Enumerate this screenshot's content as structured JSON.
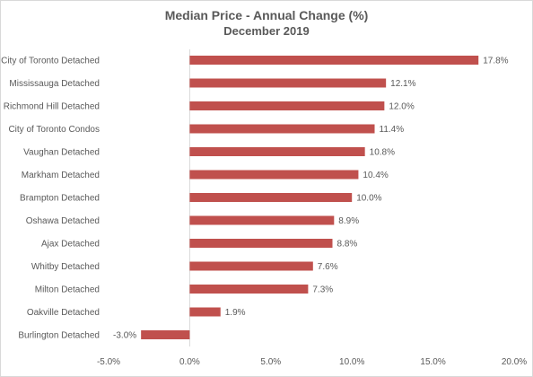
{
  "chart_data": {
    "type": "bar",
    "orientation": "horizontal",
    "title": "Median Price - Annual Change (%)",
    "subtitle": "December 2019",
    "categories": [
      "City of Toronto Detached",
      "Mississauga Detached",
      "Richmond Hill Detached",
      "City of Toronto Condos",
      "Vaughan Detached",
      "Markham Detached",
      "Brampton Detached",
      "Oshawa Detached",
      "Ajax Detached",
      "Whitby Detached",
      "Milton Detached",
      "Oakville Detached",
      "Burlington Detached"
    ],
    "values": [
      17.8,
      12.1,
      12.0,
      11.4,
      10.8,
      10.4,
      10.0,
      8.9,
      8.8,
      7.6,
      7.3,
      1.9,
      -3.0
    ],
    "data_labels": [
      "17.8%",
      "12.1%",
      "12.0%",
      "11.4%",
      "10.8%",
      "10.4%",
      "10.0%",
      "8.9%",
      "8.8%",
      "7.6%",
      "7.3%",
      "1.9%",
      "-3.0%"
    ],
    "xlim": [
      -5,
      20
    ],
    "xticks": [
      -5,
      0,
      5,
      10,
      15,
      20
    ],
    "xtick_labels": [
      "-5.0%",
      "0.0%",
      "5.0%",
      "10.0%",
      "15.0%",
      "20.0%"
    ],
    "bar_color": "#c0504d",
    "grid": false,
    "legend": "none"
  }
}
